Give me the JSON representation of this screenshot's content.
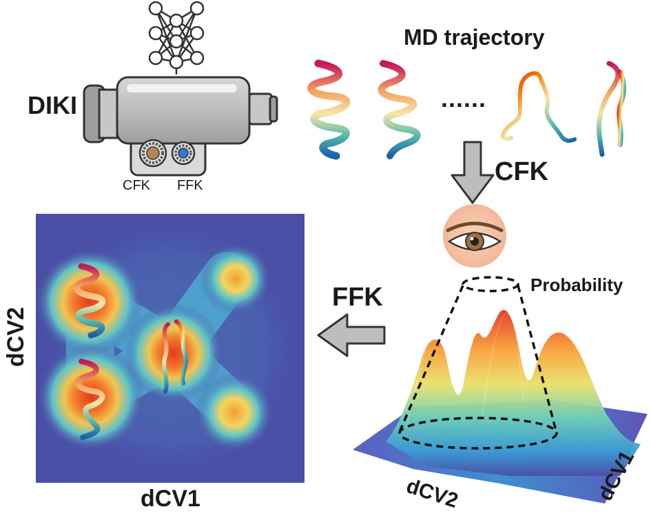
{
  "model": {
    "name": "DIKI",
    "knob_left": "CFK",
    "knob_right": "FFK"
  },
  "trajectory": {
    "title": "MD trajectory",
    "ellipsis": "......"
  },
  "arrows": {
    "down_label": "CFK",
    "left_label": "FFK"
  },
  "surface": {
    "label": "Probability",
    "axis_x": "dCV2",
    "axis_y": "dCV1"
  },
  "map": {
    "xlabel": "dCV1",
    "ylabel": "dCV2"
  },
  "colors": {
    "map_background": "#4a4fa6",
    "arrow_fill": "#bdbdbd",
    "arrow_stroke": "#333333",
    "hot": "#e83320",
    "warm": "#f2c94c",
    "cool": "#3fb6cf"
  }
}
